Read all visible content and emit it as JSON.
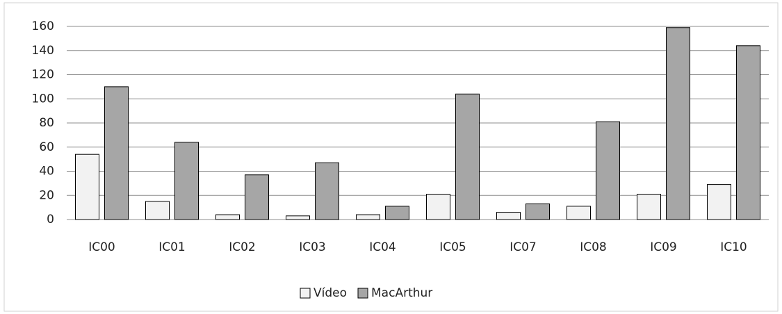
{
  "chart_data": {
    "type": "bar",
    "categories": [
      "IC00",
      "IC01",
      "IC02",
      "IC03",
      "IC04",
      "IC05",
      "IC07",
      "IC08",
      "IC09",
      "IC10"
    ],
    "series": [
      {
        "name": "Vídeo",
        "color": "#f2f2f2",
        "values": [
          54,
          15,
          4,
          3,
          4,
          21,
          6,
          11,
          21,
          29
        ]
      },
      {
        "name": "MacArthur",
        "color": "#a6a6a6",
        "values": [
          110,
          64,
          37,
          47,
          11,
          104,
          13,
          81,
          159,
          144
        ]
      }
    ],
    "ylim": [
      0,
      160
    ],
    "yticks": [
      0,
      20,
      40,
      60,
      80,
      100,
      120,
      140,
      160
    ],
    "grid": true,
    "legend": "bottom"
  }
}
